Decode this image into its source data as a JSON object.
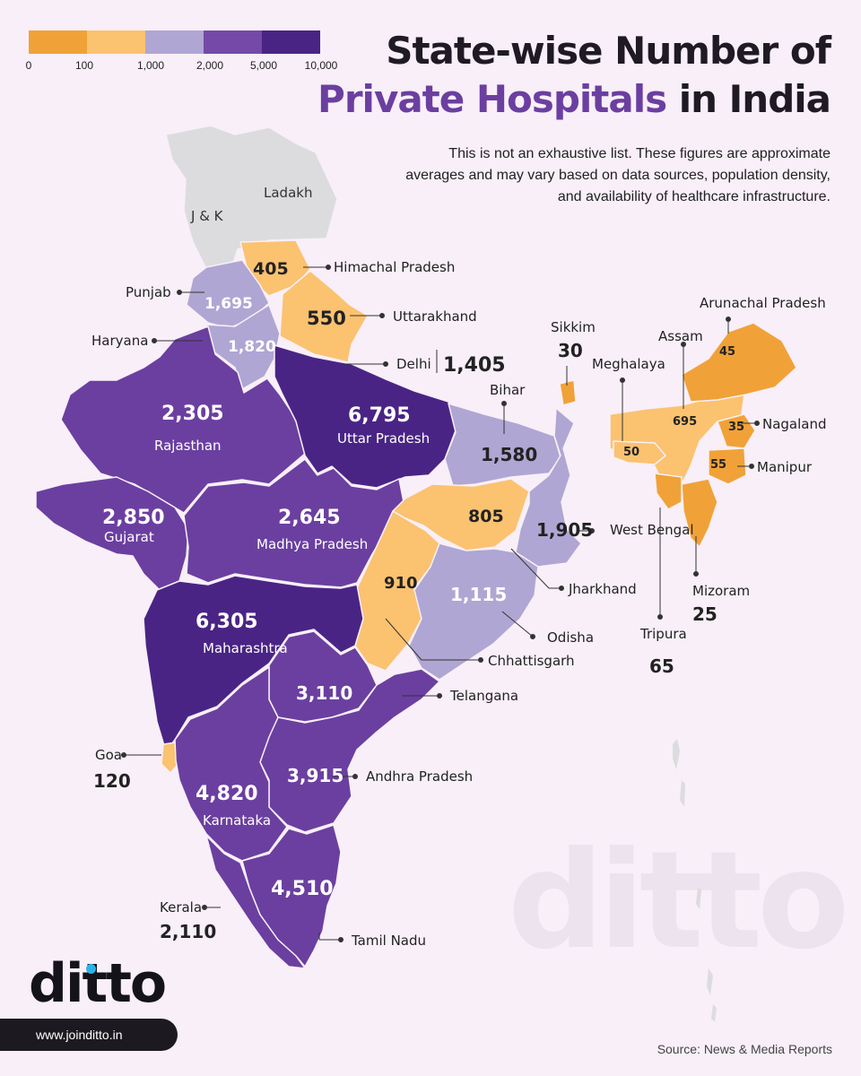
{
  "title": {
    "line1": "State-wise Number of",
    "line2_accent": "Private Hospitals",
    "line2_rest": " in India"
  },
  "subtitle": "This is not an exhaustive list. These figures are approximate averages and may vary based on data sources, population density, and availability of healthcare infrastructure.",
  "legend": {
    "colors": [
      "#f0a238",
      "#fbc270",
      "#b0a6d3",
      "#7449a8",
      "#6b3fa0",
      "#4a2485"
    ],
    "ticks": [
      "0",
      "100",
      "1,000",
      "2,000",
      "5,000",
      "10,000"
    ]
  },
  "colors": {
    "orange": "#f0a238",
    "light_orange": "#fbc270",
    "lavender": "#b0a6d3",
    "purple": "#6b3fa0",
    "dark_purple": "#4a2485",
    "grey": "#dcdcde",
    "background": "#f8eff8"
  },
  "states": [
    {
      "name": "J & K",
      "value": ""
    },
    {
      "name": "Ladakh",
      "value": ""
    },
    {
      "name": "Himachal Pradesh",
      "value": "405"
    },
    {
      "name": "Punjab",
      "value": "1,695"
    },
    {
      "name": "Uttarakhand",
      "value": "550"
    },
    {
      "name": "Haryana",
      "value": "1,820"
    },
    {
      "name": "Delhi",
      "value": "1,405"
    },
    {
      "name": "Rajasthan",
      "value": "2,305"
    },
    {
      "name": "Uttar Pradesh",
      "value": "6,795"
    },
    {
      "name": "Bihar",
      "value": "1,580"
    },
    {
      "name": "Sikkim",
      "value": "30"
    },
    {
      "name": "Arunachal Pradesh",
      "value": "45"
    },
    {
      "name": "Assam",
      "value": "695"
    },
    {
      "name": "Meghalaya",
      "value": "50"
    },
    {
      "name": "Nagaland",
      "value": "35"
    },
    {
      "name": "Manipur",
      "value": "55"
    },
    {
      "name": "Gujarat",
      "value": "2,850"
    },
    {
      "name": "Madhya Pradesh",
      "value": "2,645"
    },
    {
      "name": "West Bengal",
      "value": "1,905"
    },
    {
      "name": "Jharkhand",
      "value": "805"
    },
    {
      "name": "Mizoram",
      "value": "25"
    },
    {
      "name": "Tripura",
      "value": "65"
    },
    {
      "name": "Chhattisgarh",
      "value": "910"
    },
    {
      "name": "Odisha",
      "value": "1,115"
    },
    {
      "name": "Maharashtra",
      "value": "6,305"
    },
    {
      "name": "Telangana",
      "value": "3,110"
    },
    {
      "name": "Goa",
      "value": "120"
    },
    {
      "name": "Andhra Pradesh",
      "value": "3,915"
    },
    {
      "name": "Karnataka",
      "value": "4,820"
    },
    {
      "name": "Kerala",
      "value": "2,110"
    },
    {
      "name": "Tamil Nadu",
      "value": "4,510"
    }
  ],
  "branding": {
    "logo": "ditto",
    "website": "www.joinditto.in",
    "watermark": "ditto"
  },
  "source": "Source: News & Media Reports"
}
